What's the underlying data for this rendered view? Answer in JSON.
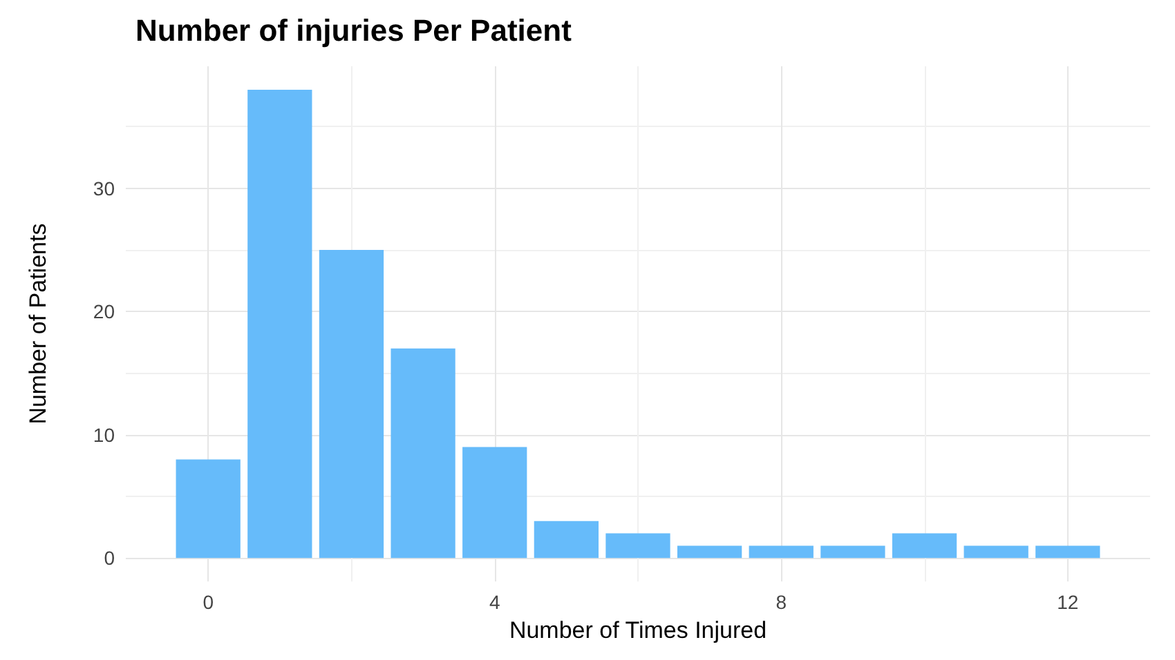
{
  "chart_data": {
    "type": "bar",
    "title": "Number of injuries Per Patient",
    "xlabel": "Number of Times Injured",
    "ylabel": "Number of Patients",
    "x": [
      0,
      1,
      2,
      3,
      4,
      5,
      6,
      7,
      8,
      9,
      10,
      11,
      12
    ],
    "values": [
      8,
      38,
      25,
      17,
      9,
      3,
      2,
      1,
      1,
      1,
      2,
      1,
      1
    ],
    "color": "#66bbfa",
    "xlim": [
      -1.15,
      13.15
    ],
    "xticks": [
      0,
      4,
      8,
      12
    ],
    "ylim": [
      -1.9,
      39.9
    ],
    "yticks": [
      0,
      10,
      20,
      30
    ],
    "grid": true
  }
}
